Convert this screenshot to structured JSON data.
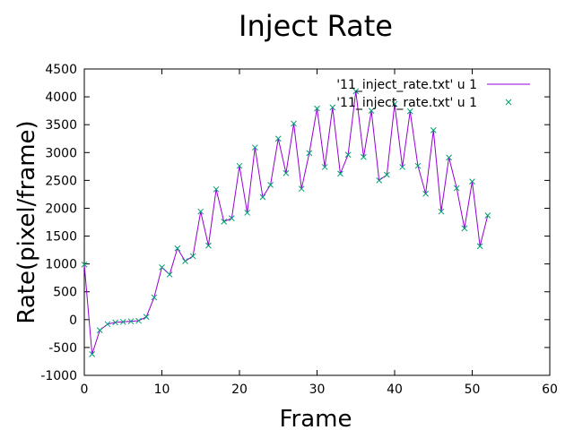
{
  "chart_data": {
    "type": "line",
    "title": "Inject Rate",
    "xlabel": "Frame",
    "ylabel": "Rate(pixel/frame)",
    "xlim": [
      0,
      60
    ],
    "ylim": [
      -1000,
      4500
    ],
    "xticks": [
      0,
      10,
      20,
      30,
      40,
      50,
      60
    ],
    "yticks": [
      -1000,
      -500,
      0,
      500,
      1000,
      1500,
      2000,
      2500,
      3000,
      3500,
      4000,
      4500
    ],
    "grid": false,
    "legend_position": "top-right",
    "series": [
      {
        "name": "'11_inject_rate.txt' u 1",
        "style": "line",
        "color": "#9400d3",
        "x": [
          0,
          1,
          2,
          3,
          4,
          5,
          6,
          7,
          8,
          9,
          10,
          11,
          12,
          13,
          14,
          15,
          16,
          17,
          18,
          19,
          20,
          21,
          22,
          23,
          24,
          25,
          26,
          27,
          28,
          29,
          30,
          31,
          32,
          33,
          34,
          35,
          36,
          37,
          38,
          39,
          40,
          41,
          42,
          43,
          44,
          45,
          46,
          47,
          48,
          49,
          50,
          51,
          52
        ],
        "values": [
          990,
          -620,
          -190,
          -80,
          -50,
          -40,
          -30,
          -20,
          50,
          400,
          940,
          810,
          1280,
          1050,
          1140,
          1940,
          1330,
          2340,
          1760,
          1820,
          2760,
          1920,
          3090,
          2200,
          2420,
          3250,
          2630,
          3520,
          2350,
          2990,
          3790,
          2740,
          3810,
          2620,
          2960,
          4100,
          2920,
          3750,
          2500,
          2600,
          3870,
          2740,
          3740,
          2760,
          2260,
          3400,
          1940,
          2910,
          2360,
          1640,
          2480,
          1320,
          1870
        ]
      },
      {
        "name": "'11_inject_rate.txt' u 1",
        "style": "points",
        "marker": "x",
        "color": "#009e73",
        "x": [
          0,
          1,
          2,
          3,
          4,
          5,
          6,
          7,
          8,
          9,
          10,
          11,
          12,
          13,
          14,
          15,
          16,
          17,
          18,
          19,
          20,
          21,
          22,
          23,
          24,
          25,
          26,
          27,
          28,
          29,
          30,
          31,
          32,
          33,
          34,
          35,
          36,
          37,
          38,
          39,
          40,
          41,
          42,
          43,
          44,
          45,
          46,
          47,
          48,
          49,
          50,
          51,
          52
        ],
        "values": [
          990,
          -620,
          -190,
          -80,
          -50,
          -40,
          -30,
          -20,
          50,
          400,
          940,
          810,
          1280,
          1050,
          1140,
          1940,
          1330,
          2340,
          1760,
          1820,
          2760,
          1920,
          3090,
          2200,
          2420,
          3250,
          2630,
          3520,
          2350,
          2990,
          3790,
          2740,
          3810,
          2620,
          2960,
          4100,
          2920,
          3750,
          2500,
          2600,
          3870,
          2740,
          3740,
          2760,
          2260,
          3400,
          1940,
          2910,
          2360,
          1640,
          2480,
          1320,
          1870
        ]
      }
    ]
  }
}
